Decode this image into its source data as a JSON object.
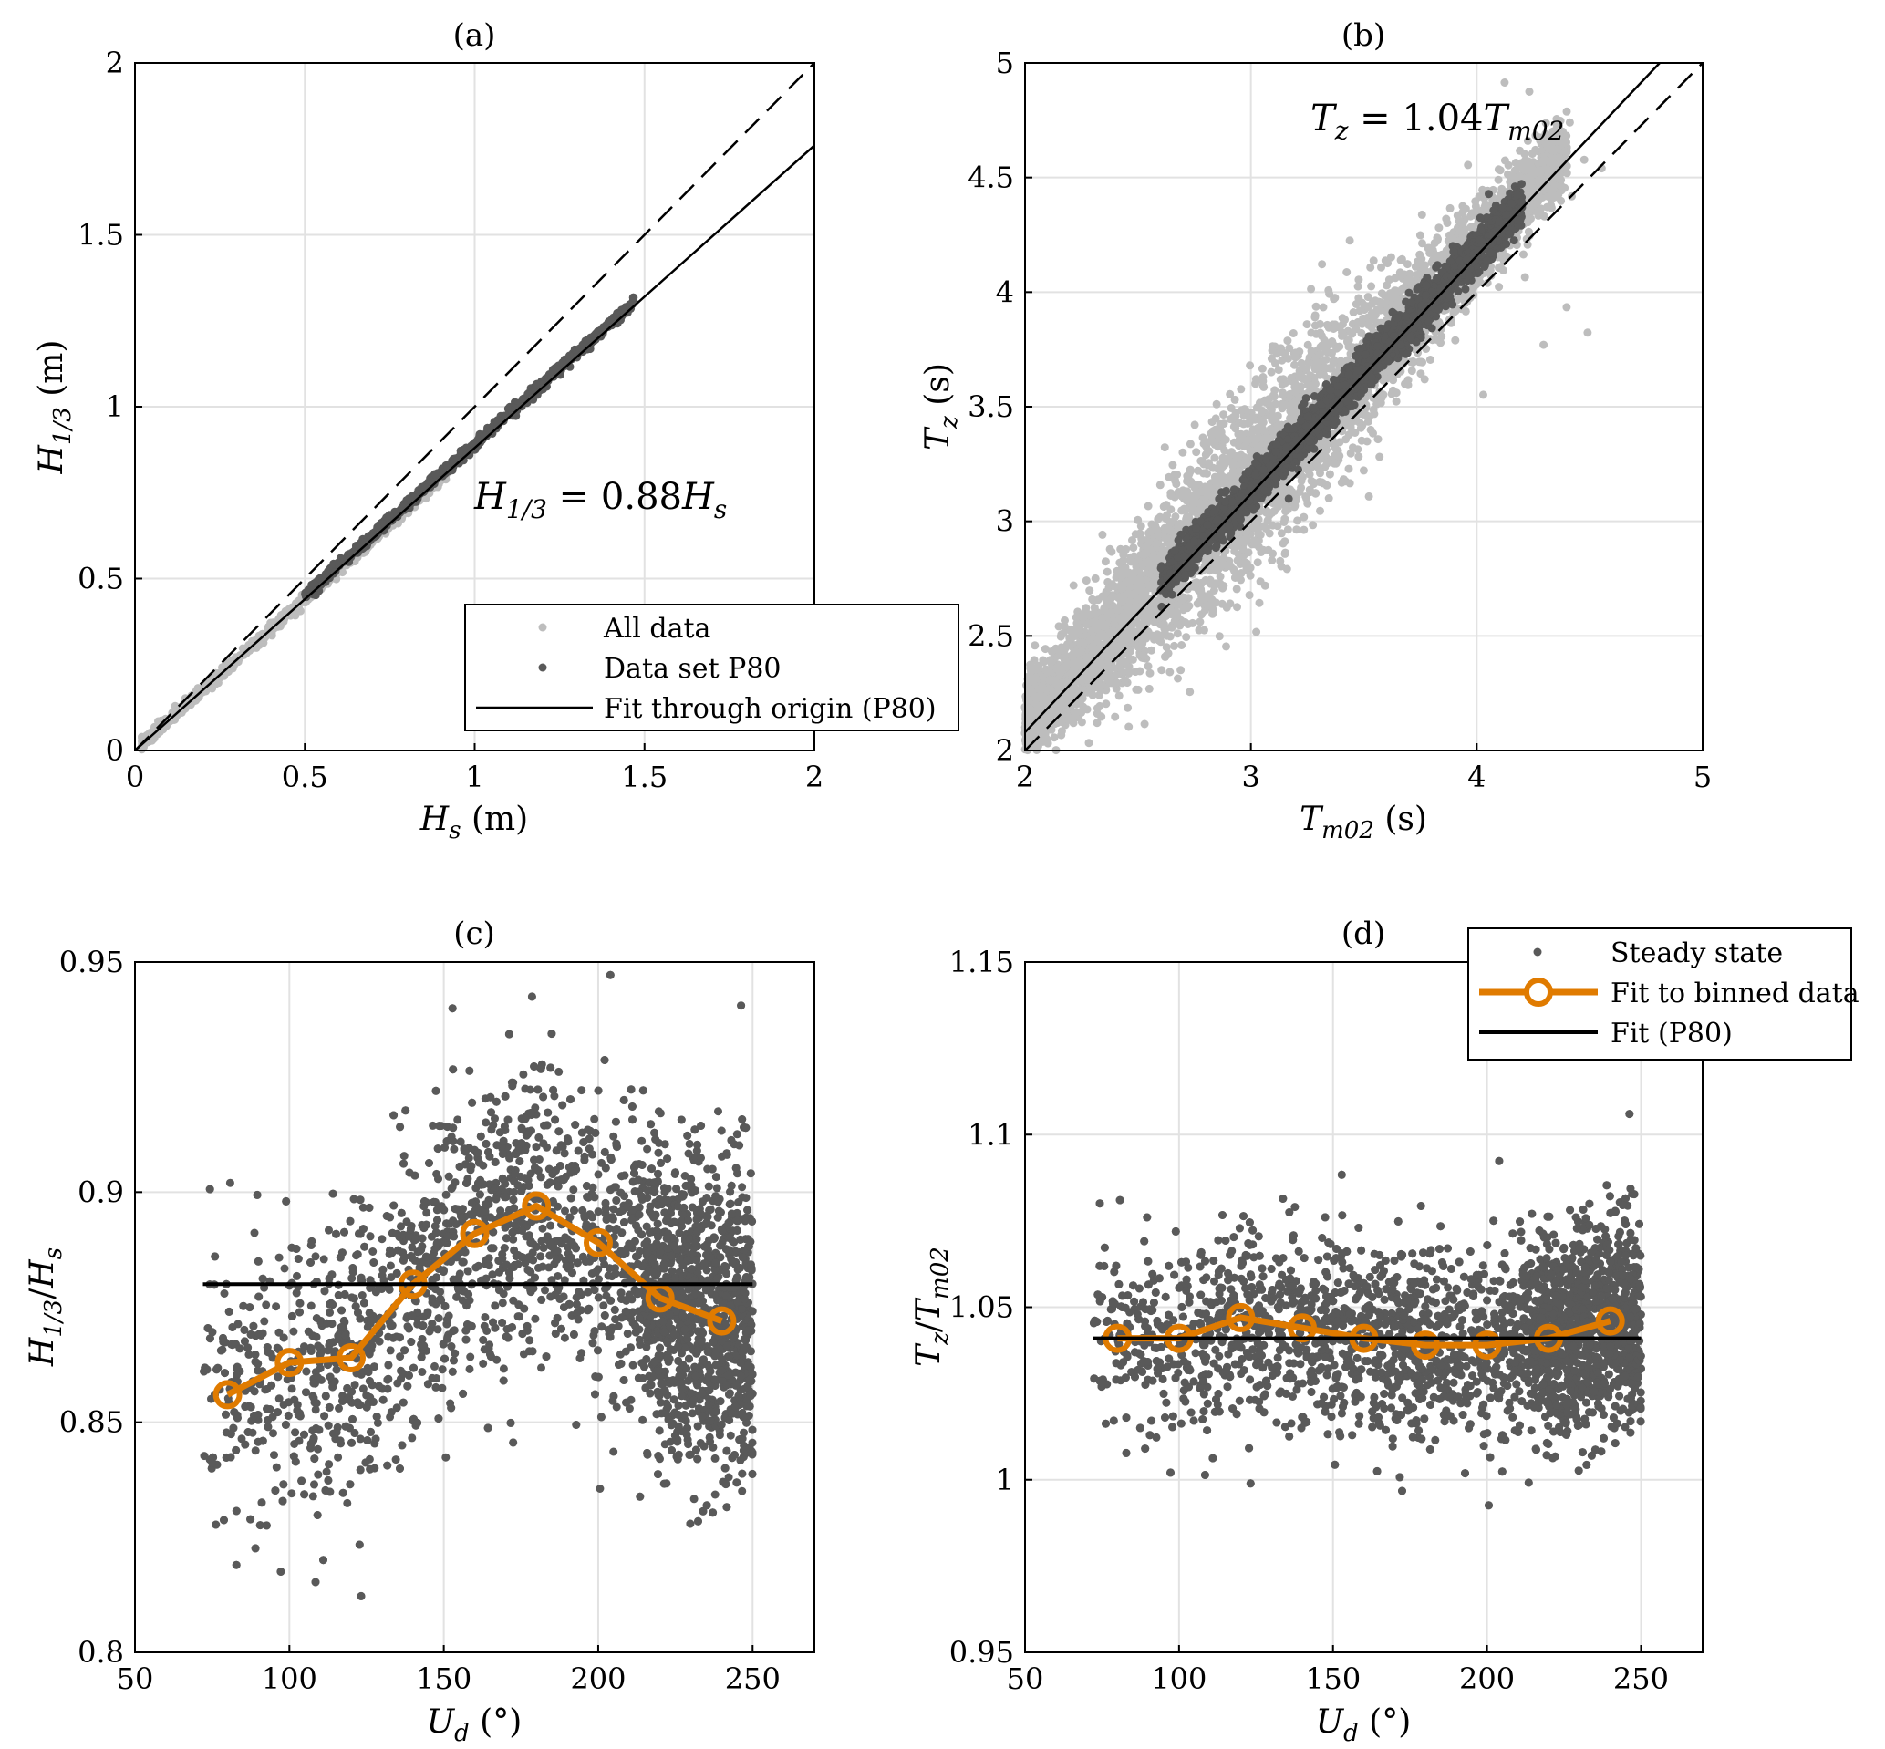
{
  "figure": {
    "colors": {
      "all_data": "#bdbdbd",
      "p80_data": "#595959",
      "fit_line": "#000000",
      "binned_fit": "#e07b00",
      "grid": "#e2e2e2"
    }
  },
  "chart_data": [
    {
      "id": "a",
      "type": "scatter",
      "title": "(a)",
      "xlabel": "H_s (m)",
      "ylabel": "H_1/3 (m)",
      "xlim": [
        0,
        2
      ],
      "ylim": [
        0,
        2
      ],
      "xticks": [
        0,
        0.5,
        1,
        1.5,
        2
      ],
      "xtick_labels": [
        "0",
        "0.5",
        "1",
        "1.5",
        "2"
      ],
      "yticks": [
        0,
        0.5,
        1,
        1.5,
        2
      ],
      "ytick_labels": [
        "0",
        "0.5",
        "1",
        "1.5",
        "2"
      ],
      "grid": true,
      "annotation": "H_1/3 = 0.88H_s",
      "series": [
        {
          "name": "All data",
          "kind": "points",
          "color": "#bdbdbd",
          "relation": "y = 0.88x",
          "x_range": [
            0.02,
            1.47
          ]
        },
        {
          "name": "Data set P80",
          "kind": "points",
          "color": "#595959",
          "relation": "y = 0.88x",
          "x_range": [
            0.5,
            1.47
          ]
        },
        {
          "name": "Fit through origin (P80)",
          "kind": "line",
          "style": "solid",
          "color": "#000000",
          "slope": 0.88,
          "x": [
            0,
            2
          ],
          "y": [
            0,
            1.76
          ]
        },
        {
          "kind": "line",
          "style": "dashed",
          "color": "#000000",
          "slope": 1.0,
          "x": [
            0,
            2
          ],
          "y": [
            0,
            2
          ]
        }
      ],
      "legend": {
        "position": "bottom-right",
        "entries": [
          "All data",
          "Data set P80",
          "Fit through origin (P80)"
        ]
      }
    },
    {
      "id": "b",
      "type": "scatter",
      "title": "(b)",
      "xlabel": "T_m02 (s)",
      "ylabel": "T_z (s)",
      "xlim": [
        2,
        5
      ],
      "ylim": [
        2,
        5
      ],
      "xticks": [
        2,
        3,
        4,
        5
      ],
      "xtick_labels": [
        "2",
        "3",
        "4",
        "5"
      ],
      "yticks": [
        2,
        2.5,
        3,
        3.5,
        4,
        4.5,
        5
      ],
      "ytick_labels": [
        "2",
        "2.5",
        "3",
        "3.5",
        "4",
        "4.5",
        "5"
      ],
      "grid": true,
      "annotation": "T_z = 1.04T_m02",
      "series": [
        {
          "kind": "points",
          "color": "#bdbdbd",
          "relation": "y = 1.04x",
          "x_range": [
            2.0,
            4.85
          ]
        },
        {
          "kind": "points",
          "color": "#595959",
          "relation": "y = 1.04x",
          "x_range": [
            2.6,
            4.2
          ]
        },
        {
          "kind": "line",
          "style": "solid",
          "color": "#000000",
          "slope": 1.04,
          "x": [
            2,
            4.81
          ],
          "y": [
            2.08,
            5.0
          ]
        },
        {
          "kind": "line",
          "style": "dashed",
          "color": "#000000",
          "slope": 1.0,
          "x": [
            2,
            5
          ],
          "y": [
            2,
            5
          ]
        }
      ]
    },
    {
      "id": "c",
      "type": "scatter",
      "title": "(c)",
      "xlabel": "U_d (°)",
      "ylabel": "H_1/3/H_s",
      "xlim": [
        50,
        270
      ],
      "ylim": [
        0.8,
        0.95
      ],
      "xticks": [
        50,
        100,
        150,
        200,
        250
      ],
      "xtick_labels": [
        "50",
        "100",
        "150",
        "200",
        "250"
      ],
      "yticks": [
        0.8,
        0.85,
        0.9,
        0.95
      ],
      "ytick_labels": [
        "0.8",
        "0.85",
        "0.9",
        "0.95"
      ],
      "grid": true,
      "series": [
        {
          "name": "Steady state",
          "kind": "points",
          "color": "#595959",
          "x_range": [
            72,
            250
          ]
        },
        {
          "name": "Fit to binned data",
          "kind": "line_markers",
          "color": "#e07b00",
          "x": [
            80,
            100,
            120,
            140,
            160,
            180,
            200,
            220,
            240
          ],
          "y": [
            0.856,
            0.863,
            0.864,
            0.88,
            0.891,
            0.897,
            0.889,
            0.877,
            0.872
          ]
        },
        {
          "name": "Fit (P80)",
          "kind": "line",
          "style": "solid",
          "color": "#000000",
          "x": [
            72,
            250
          ],
          "y": [
            0.88,
            0.88
          ]
        }
      ]
    },
    {
      "id": "d",
      "type": "scatter",
      "title": "(d)",
      "xlabel": "U_d (°)",
      "ylabel": "T_z/T_m02",
      "xlim": [
        50,
        270
      ],
      "ylim": [
        0.95,
        1.15
      ],
      "xticks": [
        50,
        100,
        150,
        200,
        250
      ],
      "xtick_labels": [
        "50",
        "100",
        "150",
        "200",
        "250"
      ],
      "yticks": [
        0.95,
        1,
        1.05,
        1.1,
        1.15
      ],
      "ytick_labels": [
        "0.95",
        "1",
        "1.05",
        "1.1",
        "1.15"
      ],
      "grid": true,
      "series": [
        {
          "name": "Steady state",
          "kind": "points",
          "color": "#595959",
          "x_range": [
            72,
            250
          ]
        },
        {
          "name": "Fit to binned data",
          "kind": "line_markers",
          "color": "#e07b00",
          "x": [
            80,
            100,
            120,
            140,
            160,
            180,
            200,
            220,
            240
          ],
          "y": [
            1.041,
            1.041,
            1.047,
            1.044,
            1.041,
            1.039,
            1.039,
            1.041,
            1.046
          ]
        },
        {
          "name": "Fit (P80)",
          "kind": "line",
          "style": "solid",
          "color": "#000000",
          "x": [
            72,
            250
          ],
          "y": [
            1.041,
            1.041
          ]
        }
      ],
      "legend": {
        "position": "top-right",
        "entries": [
          "Steady state",
          "Fit to binned data",
          "Fit (P80)"
        ]
      }
    }
  ]
}
